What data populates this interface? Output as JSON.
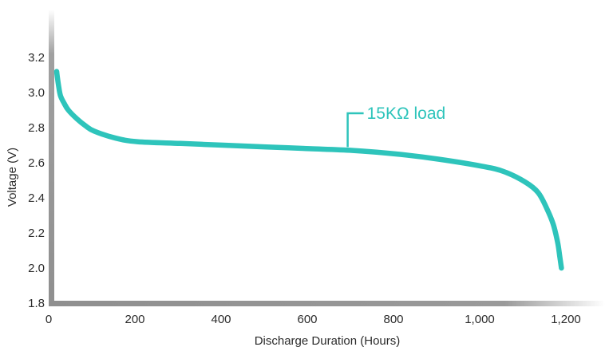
{
  "chart_data": {
    "type": "line",
    "title": "",
    "xlabel": "Discharge Duration (Hours)",
    "ylabel": "Voltage (V)",
    "xlim": [
      0,
      1250
    ],
    "ylim": [
      1.8,
      3.4
    ],
    "x_ticks": [
      0,
      200,
      400,
      600,
      800,
      1000,
      1200
    ],
    "x_tick_labels": [
      "0",
      "200",
      "400",
      "600",
      "800",
      "1,000",
      "1,200"
    ],
    "y_ticks": [
      1.8,
      2.0,
      2.2,
      2.4,
      2.6,
      2.8,
      3.0,
      3.2
    ],
    "y_tick_labels": [
      "1.8",
      "2.0",
      "2.2",
      "2.4",
      "2.6",
      "2.8",
      "3.0",
      "3.2"
    ],
    "grid": false,
    "colors": {
      "line": "#2ec4bb",
      "axis": "#8f8f8f",
      "text": "#2b2b2b"
    },
    "series": [
      {
        "name": "15KΩ load",
        "x": [
          13,
          15,
          18,
          22,
          30,
          40,
          60,
          80,
          100,
          150,
          200,
          300,
          400,
          500,
          600,
          700,
          800,
          900,
          1000,
          1050,
          1100,
          1130,
          1150,
          1165,
          1175,
          1180,
          1184
        ],
        "y": [
          3.12,
          3.08,
          3.03,
          2.98,
          2.94,
          2.9,
          2.85,
          2.81,
          2.78,
          2.74,
          2.72,
          2.71,
          2.7,
          2.69,
          2.68,
          2.67,
          2.65,
          2.62,
          2.58,
          2.55,
          2.49,
          2.43,
          2.34,
          2.25,
          2.15,
          2.07,
          2.0
        ]
      }
    ],
    "annotations": [
      {
        "text": "15KΩ load",
        "series": 0,
        "x": 690
      }
    ]
  }
}
